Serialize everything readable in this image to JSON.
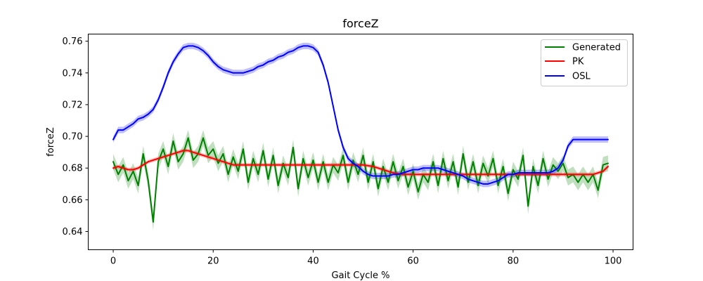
{
  "chart_data": {
    "type": "line",
    "title": "forceZ",
    "xlabel": "Gait Cycle %",
    "ylabel": "forceZ",
    "xlim": [
      -5,
      104
    ],
    "ylim": [
      0.6285,
      0.7645
    ],
    "xticks": [
      0,
      20,
      40,
      60,
      80,
      100
    ],
    "yticks": [
      0.64,
      0.66,
      0.68,
      0.7,
      0.72,
      0.74,
      0.76
    ],
    "grid": false,
    "legend_position": "top-right",
    "legend": [
      "Generated",
      "PK",
      "OSL"
    ],
    "series": [
      {
        "name": "Generated",
        "color": "#008000",
        "band_alpha": 0.25,
        "x": [
          0,
          1,
          2,
          3,
          4,
          5,
          6,
          7,
          8,
          9,
          10,
          11,
          12,
          13,
          14,
          15,
          16,
          17,
          18,
          19,
          20,
          21,
          22,
          23,
          24,
          25,
          26,
          27,
          28,
          29,
          30,
          31,
          32,
          33,
          34,
          35,
          36,
          37,
          38,
          39,
          40,
          41,
          42,
          43,
          44,
          45,
          46,
          47,
          48,
          49,
          50,
          51,
          52,
          53,
          54,
          55,
          56,
          57,
          58,
          59,
          60,
          61,
          62,
          63,
          64,
          65,
          66,
          67,
          68,
          69,
          70,
          71,
          72,
          73,
          74,
          75,
          76,
          77,
          78,
          79,
          80,
          81,
          82,
          83,
          84,
          85,
          86,
          87,
          88,
          89,
          90,
          91,
          92,
          93,
          94,
          95,
          96,
          97,
          98,
          99
        ],
        "values": [
          0.684,
          0.676,
          0.682,
          0.672,
          0.678,
          0.669,
          0.689,
          0.672,
          0.646,
          0.684,
          0.692,
          0.681,
          0.697,
          0.684,
          0.689,
          0.699,
          0.685,
          0.689,
          0.699,
          0.688,
          0.692,
          0.683,
          0.689,
          0.676,
          0.687,
          0.678,
          0.692,
          0.671,
          0.686,
          0.676,
          0.691,
          0.673,
          0.688,
          0.669,
          0.683,
          0.674,
          0.693,
          0.667,
          0.686,
          0.674,
          0.685,
          0.671,
          0.684,
          0.671,
          0.682,
          0.677,
          0.688,
          0.671,
          0.685,
          0.676,
          0.688,
          0.671,
          0.684,
          0.667,
          0.681,
          0.671,
          0.684,
          0.672,
          0.681,
          0.668,
          0.678,
          0.665,
          0.676,
          0.671,
          0.684,
          0.669,
          0.686,
          0.672,
          0.684,
          0.668,
          0.689,
          0.671,
          0.684,
          0.669,
          0.683,
          0.675,
          0.686,
          0.669,
          0.681,
          0.664,
          0.679,
          0.673,
          0.688,
          0.656,
          0.681,
          0.669,
          0.686,
          0.673,
          0.682,
          0.678,
          0.683,
          0.674,
          0.676,
          0.671,
          0.676,
          0.671,
          0.676,
          0.666,
          0.682,
          0.683
        ],
        "band_width": 0.005
      },
      {
        "name": "PK",
        "color": "#ff0000",
        "band_alpha": 0.25,
        "x": [
          0,
          1,
          2,
          3,
          4,
          5,
          6,
          7,
          8,
          9,
          10,
          11,
          12,
          13,
          14,
          15,
          16,
          17,
          18,
          19,
          20,
          21,
          22,
          23,
          24,
          25,
          26,
          27,
          28,
          29,
          30,
          32,
          34,
          36,
          38,
          40,
          42,
          44,
          46,
          48,
          50,
          52,
          54,
          56,
          58,
          60,
          62,
          64,
          66,
          68,
          70,
          72,
          74,
          76,
          78,
          80,
          82,
          84,
          86,
          88,
          90,
          92,
          94,
          96,
          98,
          99
        ],
        "values": [
          0.68,
          0.681,
          0.68,
          0.679,
          0.679,
          0.68,
          0.682,
          0.684,
          0.685,
          0.686,
          0.687,
          0.688,
          0.689,
          0.69,
          0.691,
          0.691,
          0.69,
          0.689,
          0.688,
          0.687,
          0.686,
          0.685,
          0.684,
          0.683,
          0.682,
          0.682,
          0.682,
          0.682,
          0.682,
          0.682,
          0.682,
          0.682,
          0.682,
          0.682,
          0.682,
          0.682,
          0.682,
          0.682,
          0.682,
          0.682,
          0.682,
          0.681,
          0.679,
          0.677,
          0.676,
          0.676,
          0.676,
          0.676,
          0.676,
          0.676,
          0.676,
          0.676,
          0.676,
          0.676,
          0.676,
          0.676,
          0.676,
          0.676,
          0.676,
          0.676,
          0.676,
          0.676,
          0.676,
          0.676,
          0.678,
          0.681
        ],
        "band_width": 0.0012
      },
      {
        "name": "OSL",
        "color": "#0000ff",
        "band_alpha": 0.25,
        "x": [
          0,
          1,
          2,
          3,
          4,
          5,
          6,
          7,
          8,
          9,
          10,
          11,
          12,
          13,
          14,
          15,
          16,
          17,
          18,
          19,
          20,
          21,
          22,
          23,
          24,
          25,
          26,
          27,
          28,
          29,
          30,
          31,
          32,
          33,
          34,
          35,
          36,
          37,
          38,
          39,
          40,
          41,
          42,
          43,
          44,
          45,
          46,
          47,
          48,
          49,
          50,
          51,
          52,
          53,
          54,
          55,
          56,
          57,
          58,
          59,
          60,
          61,
          62,
          63,
          64,
          65,
          66,
          67,
          68,
          69,
          70,
          71,
          72,
          73,
          74,
          75,
          76,
          77,
          78,
          79,
          80,
          81,
          82,
          83,
          84,
          85,
          86,
          87,
          88,
          89,
          90,
          91,
          92,
          93,
          94,
          95,
          96,
          97,
          98,
          99
        ],
        "values": [
          0.698,
          0.704,
          0.704,
          0.706,
          0.708,
          0.711,
          0.712,
          0.714,
          0.717,
          0.723,
          0.731,
          0.74,
          0.747,
          0.752,
          0.756,
          0.757,
          0.757,
          0.756,
          0.754,
          0.751,
          0.747,
          0.744,
          0.742,
          0.741,
          0.74,
          0.74,
          0.74,
          0.741,
          0.742,
          0.744,
          0.745,
          0.747,
          0.748,
          0.75,
          0.751,
          0.753,
          0.754,
          0.756,
          0.757,
          0.757,
          0.756,
          0.753,
          0.745,
          0.734,
          0.719,
          0.704,
          0.693,
          0.686,
          0.683,
          0.681,
          0.678,
          0.676,
          0.675,
          0.675,
          0.675,
          0.675,
          0.676,
          0.676,
          0.677,
          0.678,
          0.679,
          0.679,
          0.68,
          0.68,
          0.68,
          0.68,
          0.679,
          0.678,
          0.677,
          0.676,
          0.675,
          0.673,
          0.672,
          0.671,
          0.67,
          0.67,
          0.671,
          0.672,
          0.674,
          0.676,
          0.676,
          0.677,
          0.677,
          0.677,
          0.677,
          0.677,
          0.677,
          0.677,
          0.678,
          0.68,
          0.685,
          0.694,
          0.698,
          0.698,
          0.698,
          0.698,
          0.698,
          0.698,
          0.698,
          0.698
        ],
        "band_width": 0.002
      }
    ]
  }
}
